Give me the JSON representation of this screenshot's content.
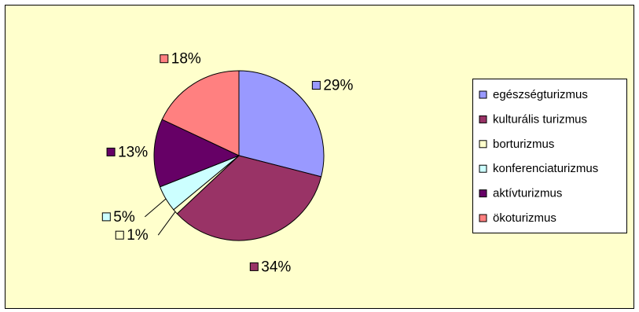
{
  "chart_data": {
    "type": "pie",
    "categories": [
      "egészségturizmus",
      "kulturális turizmus",
      "borturizmus",
      "konferenciaturizmus",
      "aktívturizmus",
      "ökoturizmus"
    ],
    "values": [
      29,
      34,
      1,
      5,
      13,
      18
    ],
    "value_labels": [
      "29%",
      "34%",
      "1%",
      "5%",
      "13%",
      "18%"
    ],
    "colors": [
      "#9999FF",
      "#993366",
      "#FFFFCC",
      "#CCFFFF",
      "#660066",
      "#FF8080"
    ],
    "legend": "right"
  }
}
